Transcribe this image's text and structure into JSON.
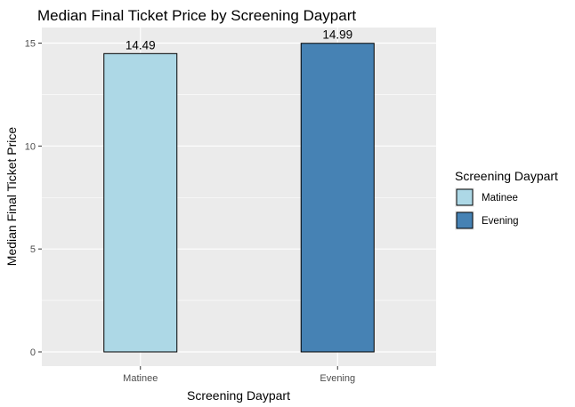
{
  "chart_data": {
    "type": "bar",
    "title": "Median Final Ticket Price by Screening Daypart",
    "xlabel": "Screening Daypart",
    "ylabel": "Median Final Ticket Price",
    "categories": [
      "Matinee",
      "Evening"
    ],
    "values": [
      14.49,
      14.99
    ],
    "data_labels": [
      "14.49",
      "14.99"
    ],
    "colors": [
      "#add8e6",
      "#4682b4"
    ],
    "ylim": [
      0,
      15.7
    ],
    "y_ticks": [
      0,
      5,
      10,
      15
    ],
    "grid": true,
    "legend": {
      "title": "Screening Daypart",
      "position": "right",
      "entries": [
        "Matinee",
        "Evening"
      ]
    }
  }
}
